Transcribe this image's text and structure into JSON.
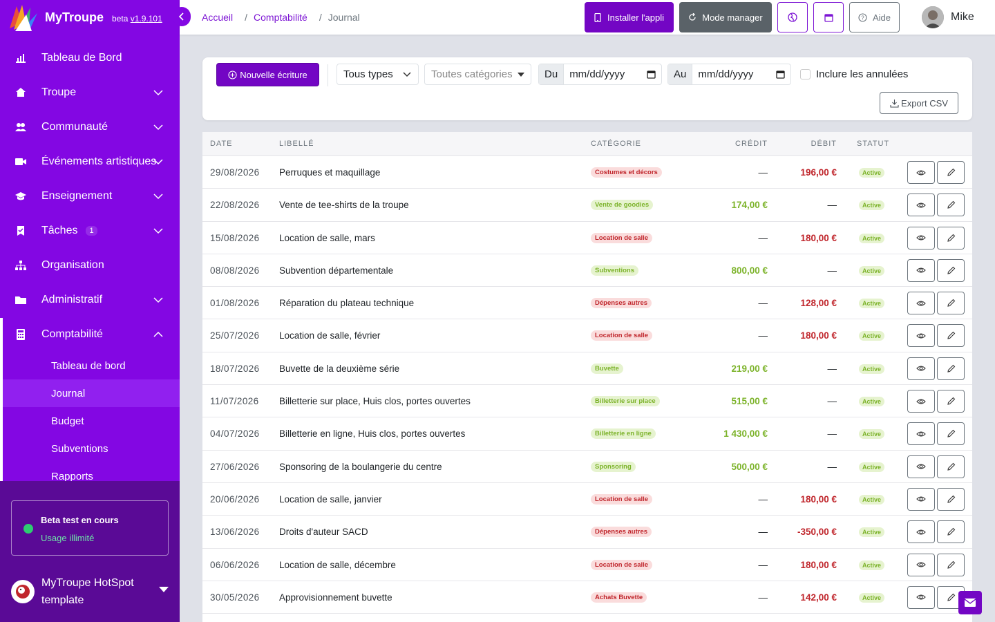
{
  "brand": {
    "name": "MyTroupe",
    "beta_prefix": "beta ",
    "version": "v1.9.101"
  },
  "sidebar": {
    "items": [
      {
        "label": "Tableau de Bord",
        "icon": "bar-chart-icon",
        "expandable": false
      },
      {
        "label": "Troupe",
        "icon": "house-icon",
        "expandable": true
      },
      {
        "label": "Communauté",
        "icon": "people-icon",
        "expandable": true
      },
      {
        "label": "Événements artistiques",
        "icon": "video-camera-icon",
        "expandable": true
      },
      {
        "label": "Enseignement",
        "icon": "graduation-cap-icon",
        "expandable": true
      },
      {
        "label": "Tâches",
        "badge": "1",
        "icon": "task-icon",
        "expandable": true
      },
      {
        "label": "Organisation",
        "icon": "org-chart-icon",
        "expandable": false
      },
      {
        "label": "Administratif",
        "icon": "folder-icon",
        "expandable": true
      },
      {
        "label": "Comptabilité",
        "icon": "calculator-icon",
        "expandable": true,
        "expanded": true
      }
    ],
    "sub_items": [
      "Tableau de bord",
      "Journal",
      "Budget",
      "Subventions",
      "Rapports"
    ],
    "active_sub": "Journal",
    "beta": {
      "title": "Beta test en cours",
      "subtitle": "Usage illimité"
    },
    "org": {
      "name": "MyTroupe HotSpot template"
    }
  },
  "breadcrumb": {
    "home": "Accueil",
    "section": "Comptabilité",
    "current": "Journal",
    "sep": "/"
  },
  "topbar": {
    "install_label": "Installer l'appli",
    "manager_label": "Mode manager",
    "help_label": "Aide",
    "user_name": "Mike"
  },
  "filters": {
    "new_label": "Nouvelle écriture",
    "types_value": "Tous types",
    "categories_placeholder": "Toutes catégories",
    "from_label": "Du",
    "from_value": "mm/dd/yyyy",
    "to_label": "Au",
    "to_value": "mm/dd/yyyy",
    "include_cancelled_label": "Inclure les annulées",
    "export_label": "Export CSV"
  },
  "table": {
    "headers": {
      "date": "DATE",
      "libelle": "LIBELLÉ",
      "categorie": "CATÉGORIE",
      "credit": "CRÉDIT",
      "debit": "DÉBIT",
      "statut": "STATUT"
    },
    "rows": [
      {
        "date": "29/08/2026",
        "libelle": "Perruques et maquillage",
        "categorie": "Costumes et décors",
        "cat_color": "red",
        "credit": "—",
        "debit": "196,00 €",
        "statut": "Active"
      },
      {
        "date": "22/08/2026",
        "libelle": "Vente de tee-shirts de la troupe",
        "categorie": "Vente de goodies",
        "cat_color": "green",
        "credit": "174,00 €",
        "debit": "—",
        "statut": "Active"
      },
      {
        "date": "15/08/2026",
        "libelle": "Location de salle, mars",
        "categorie": "Location de salle",
        "cat_color": "red",
        "credit": "—",
        "debit": "180,00 €",
        "statut": "Active"
      },
      {
        "date": "08/08/2026",
        "libelle": "Subvention départementale",
        "categorie": "Subventions",
        "cat_color": "green",
        "credit": "800,00 €",
        "debit": "—",
        "statut": "Active"
      },
      {
        "date": "01/08/2026",
        "libelle": "Réparation du plateau technique",
        "categorie": "Dépenses autres",
        "cat_color": "red",
        "credit": "—",
        "debit": "128,00 €",
        "statut": "Active"
      },
      {
        "date": "25/07/2026",
        "libelle": "Location de salle, février",
        "categorie": "Location de salle",
        "cat_color": "red",
        "credit": "—",
        "debit": "180,00 €",
        "statut": "Active"
      },
      {
        "date": "18/07/2026",
        "libelle": "Buvette de la deuxième série",
        "categorie": "Buvette",
        "cat_color": "green",
        "credit": "219,00 €",
        "debit": "—",
        "statut": "Active"
      },
      {
        "date": "11/07/2026",
        "libelle": "Billetterie sur place, Huis clos, portes ouvertes",
        "categorie": "Billetterie sur place",
        "cat_color": "green",
        "credit": "515,00 €",
        "debit": "—",
        "statut": "Active"
      },
      {
        "date": "04/07/2026",
        "libelle": "Billetterie en ligne, Huis clos, portes ouvertes",
        "categorie": "Billetterie en ligne",
        "cat_color": "green",
        "credit": "1 430,00 €",
        "debit": "—",
        "statut": "Active"
      },
      {
        "date": "27/06/2026",
        "libelle": "Sponsoring de la boulangerie du centre",
        "categorie": "Sponsoring",
        "cat_color": "green",
        "credit": "500,00 €",
        "debit": "—",
        "statut": "Active"
      },
      {
        "date": "20/06/2026",
        "libelle": "Location de salle, janvier",
        "categorie": "Location de salle",
        "cat_color": "red",
        "credit": "—",
        "debit": "180,00 €",
        "statut": "Active"
      },
      {
        "date": "13/06/2026",
        "libelle": "Droits d'auteur SACD",
        "categorie": "Dépenses autres",
        "cat_color": "red",
        "credit": "—",
        "debit": "-350,00 €",
        "statut": "Active"
      },
      {
        "date": "06/06/2026",
        "libelle": "Location de salle, décembre",
        "categorie": "Location de salle",
        "cat_color": "red",
        "credit": "—",
        "debit": "180,00 €",
        "statut": "Active"
      },
      {
        "date": "30/05/2026",
        "libelle": "Approvisionnement buvette",
        "categorie": "Achats Buvette",
        "cat_color": "red",
        "credit": "—",
        "debit": "142,00 €",
        "statut": "Active"
      }
    ]
  },
  "colors": {
    "primary": "#8307e3",
    "primary_dark": "#7306c4",
    "credit": "#7cb32a",
    "debit": "#c0262c",
    "success": "#2ecc71"
  }
}
